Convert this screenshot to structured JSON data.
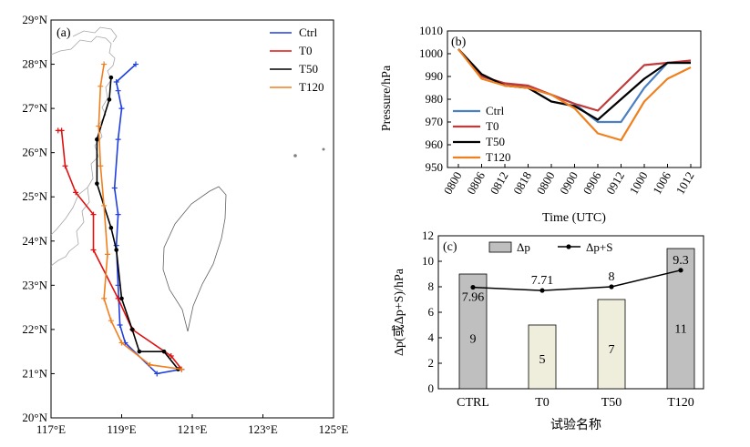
{
  "chart_data": [
    {
      "type": "line",
      "panel_label": "(a)",
      "xlim": [
        117,
        125
      ],
      "ylim": [
        20,
        29
      ],
      "x_ticks": [
        117,
        119,
        121,
        123,
        125
      ],
      "x_tick_labels": [
        "117°E",
        "119°E",
        "121°E",
        "123°E",
        "125°E"
      ],
      "y_ticks": [
        20,
        21,
        22,
        23,
        24,
        25,
        26,
        27,
        28,
        29
      ],
      "y_tick_labels": [
        "20°N",
        "21°N",
        "22°N",
        "23°N",
        "24°N",
        "25°N",
        "26°N",
        "27°N",
        "28°N",
        "29°N"
      ],
      "legend_position": "top-right",
      "series": [
        {
          "name": "Ctrl",
          "color": "#1f3fe0",
          "marker": "plus",
          "x": [
            120.7,
            120.0,
            119.1,
            118.95,
            118.9,
            118.85,
            118.9,
            118.8,
            118.9,
            119.0,
            118.9,
            118.85,
            119.4
          ],
          "y": [
            21.1,
            21.0,
            21.7,
            22.1,
            23.0,
            23.9,
            24.6,
            25.2,
            26.3,
            27.0,
            27.4,
            27.6,
            28.0
          ]
        },
        {
          "name": "T0",
          "color": "#e01010",
          "marker": "plus",
          "x": [
            120.7,
            120.4,
            119.3,
            118.9,
            118.2,
            118.2,
            117.7,
            117.4,
            117.3,
            117.2
          ],
          "y": [
            21.1,
            21.4,
            22.0,
            22.7,
            23.8,
            24.6,
            25.1,
            25.7,
            26.5,
            26.5
          ]
        },
        {
          "name": "T50",
          "color": "#000000",
          "marker": "dot",
          "x": [
            120.6,
            120.2,
            119.5,
            119.3,
            119.0,
            118.85,
            118.7,
            118.3,
            118.3,
            118.65,
            118.7
          ],
          "y": [
            21.1,
            21.5,
            21.5,
            22.0,
            22.7,
            23.8,
            24.3,
            25.3,
            26.3,
            27.2,
            27.7
          ]
        },
        {
          "name": "T120",
          "color": "#f07f1e",
          "marker": "plus",
          "x": [
            120.7,
            119.8,
            119.0,
            118.7,
            118.5,
            118.6,
            118.5,
            118.4,
            118.35,
            118.4,
            118.5
          ],
          "y": [
            21.1,
            21.2,
            21.7,
            22.2,
            22.7,
            23.7,
            24.8,
            25.7,
            26.6,
            27.5,
            28.0
          ]
        }
      ]
    },
    {
      "type": "line",
      "panel_label": "(b)",
      "xlabel": "Time (UTC)",
      "ylabel": "Pressure/hPa",
      "categories": [
        "0800",
        "0806",
        "0812",
        "0818",
        "0800",
        "0900",
        "0906",
        "0912",
        "1000",
        "1006",
        "1012"
      ],
      "ylim": [
        950,
        1010
      ],
      "y_ticks": [
        950,
        960,
        970,
        980,
        990,
        1000,
        1010
      ],
      "legend_position": "bottom-left",
      "series": [
        {
          "name": "Ctrl",
          "color": "#4a7fc1",
          "values": [
            1002,
            990,
            987,
            985,
            982,
            978,
            970,
            970,
            985,
            996,
            996
          ]
        },
        {
          "name": "T0",
          "color": "#c0393b",
          "values": [
            1002,
            990,
            987,
            986,
            982,
            978,
            975,
            985,
            995,
            996,
            997
          ]
        },
        {
          "name": "T50",
          "color": "#000000",
          "values": [
            1002,
            991,
            986,
            985,
            979,
            977,
            971,
            980,
            989,
            996,
            996
          ]
        },
        {
          "name": "T120",
          "color": "#f07f1e",
          "values": [
            1002,
            989,
            986,
            985,
            982,
            976,
            965,
            962,
            979,
            989,
            994
          ]
        }
      ]
    },
    {
      "type": "bar",
      "panel_label": "(c)",
      "xlabel": "试验名称",
      "ylabel": "Δp(或Δp+S)/hPa",
      "categories": [
        "CTRL",
        "T0",
        "T50",
        "T120"
      ],
      "ylim": [
        0,
        12
      ],
      "y_ticks": [
        0,
        2,
        4,
        6,
        8,
        10,
        12
      ],
      "legend_position": "top",
      "series": [
        {
          "name": "Δp",
          "kind": "bar",
          "values": [
            9,
            5,
            7,
            11
          ],
          "colors": [
            "#bfbfbf",
            "#efeedd",
            "#efeedd",
            "#bfbfbf"
          ]
        },
        {
          "name": "Δp+S",
          "kind": "line",
          "values": [
            7.96,
            7.71,
            8,
            9.3
          ],
          "color": "#000000"
        }
      ]
    }
  ]
}
